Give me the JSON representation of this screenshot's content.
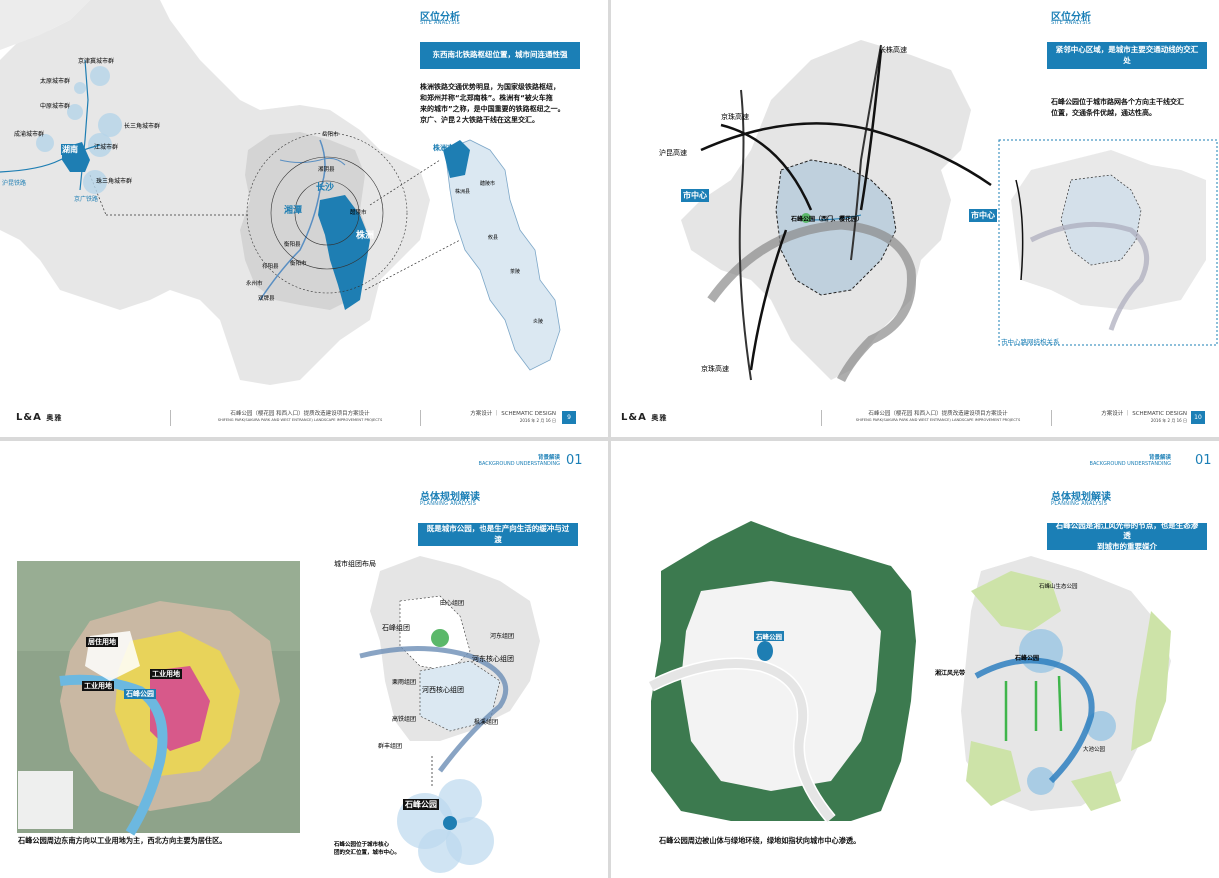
{
  "pages": [
    {
      "title": "区位分析",
      "subtitle": "SITE ANALYSIS",
      "banner": "东西南北铁路枢纽位置，城市间连通性强",
      "body": [
        "株洲铁路交通优势明显，为国家级铁路枢纽，",
        "和郑州并称“北郑南株”。株洲有“被火车拖",
        "来的城市”之称，是中国重要的铁路枢纽之一。",
        "京广、沪昆２大铁路干线在这里交汇。"
      ],
      "map_labels": {
        "jingjin": "京津冀城市群",
        "taiyuan": "太原城市群",
        "zhongyuan": "中原城市群",
        "changsanjiao": "长三角城市群",
        "chengyu": "成渝城市群",
        "hunan": "湖南",
        "jiangcheng": "江城市群",
        "zhusanjiao": "珠三角城市群",
        "hukun": "沪昆铁路",
        "jingguang": "京广铁路",
        "yueyang": "岳阳市",
        "xiangyin": "湘阴县",
        "changsha": "长沙",
        "xiangtan": "湘潭",
        "liling": "醴陵市",
        "zhuzhou": "株洲",
        "hengyang_county": "衡阳县",
        "hengyang": "衡阳市",
        "qiyang": "祁阳县",
        "yongzhou": "永州市",
        "shuangpai": "双牌县",
        "zhuzhou_city": "株洲市",
        "zhuzhou_county": "株洲县",
        "lilingshi": "醴陵市",
        "youxian": "攸县",
        "chaling": "茶陵",
        "yanling": "炎陵"
      },
      "footer": {
        "logo": "L&A",
        "logo_cn": "奥雅",
        "project_cn": "石峰公园（樱花园 和西入口）提质改造建设项目方案设计",
        "project_en": "SHIFENG PARK(SAKURA PARK AND WEST ENTRANCE) LANDSCAPE IMPROVEMENT PROJECTS",
        "stage": "方案设计 ｜ SCHEMATIC DESIGN",
        "date": "2016 年 2 月 16 日",
        "page": "9"
      }
    },
    {
      "title": "区位分析",
      "subtitle": "SITE ANALYSIS",
      "banner": "紧邻中心区域，是城市主要交通动线的交汇处",
      "body": [
        "石峰公园位于城市路网各个方向主干线交汇",
        "位置，交通条件优越，通达性高。"
      ],
      "map_labels": {
        "changzhu": "长株高速",
        "jingzhu_top": "京珠高速",
        "hukun": "沪昆高速",
        "city_center_left": "市中心",
        "park": "石峰公园（西门、樱花园）",
        "city_center_right": "市中心",
        "jingzhu_bottom": "京珠高速",
        "network": "市中心路网结构关系"
      },
      "footer": {
        "logo": "L&A",
        "logo_cn": "奥雅",
        "project_cn": "石峰公园（樱花园 和西入口）提质改造建设项目方案设计",
        "project_en": "SHIFENG PARK(SAKURA PARK AND WEST ENTRANCE) LANDSCAPE IMPROVEMENT PROJECTS",
        "stage": "方案设计 ｜ SCHEMATIC DESIGN",
        "date": "2016 年 2 月 16 日",
        "page": "10"
      }
    },
    {
      "section_cn": "背景解读",
      "section_en": "BACKGROUND UNDERSTANDING",
      "section_num": "01",
      "title": "总体规划解读",
      "subtitle": "PLANNING ANALYSIS",
      "banner": "既是城市公园，也是生产向生活的缓冲与过渡",
      "cluster_title": "城市组团布局",
      "map_labels": {
        "residential": "居住用地",
        "industrial_left": "工业用地",
        "industrial_right": "工业用地",
        "park": "石峰公园"
      },
      "clusters": {
        "tianxin": "田心组团",
        "shifeng": "石峰组团",
        "hedong_core": "河东核心组团",
        "hexi_core": "河西核心组团",
        "hedong": "河东组团",
        "liyu": "栗雨组团",
        "gaoxin": "高铁组团",
        "fengxi": "枫溪组团",
        "qunfeng": "群丰组团",
        "park": "石峰公园"
      },
      "caption": "石峰公园周边东南方向以工业用地为主，西北方向主要为居住区。",
      "note": [
        "石峰公园位于城市核心",
        "团的交汇位置，城市中心。"
      ]
    },
    {
      "section_cn": "背景解读",
      "section_en": "BACKGROUND UNDERSTANDING",
      "section_num": "01",
      "title": "总体规划解读",
      "subtitle": "PLANNING ANALYSIS",
      "banner": [
        "石峰公园是湘江风光带的节点，也是生态渗透",
        "到城市的重要媒介"
      ],
      "map_labels": {
        "park": "石峰公园",
        "shifeng_eco": "石峰山生态公园",
        "shifeng": "石峰公园",
        "xiangjiang": "湘江风光带",
        "dachi": "大池公园"
      },
      "caption": "石峰公园周边被山体与绿地环绕，绿地如指状向城市中心渗透。"
    }
  ]
}
